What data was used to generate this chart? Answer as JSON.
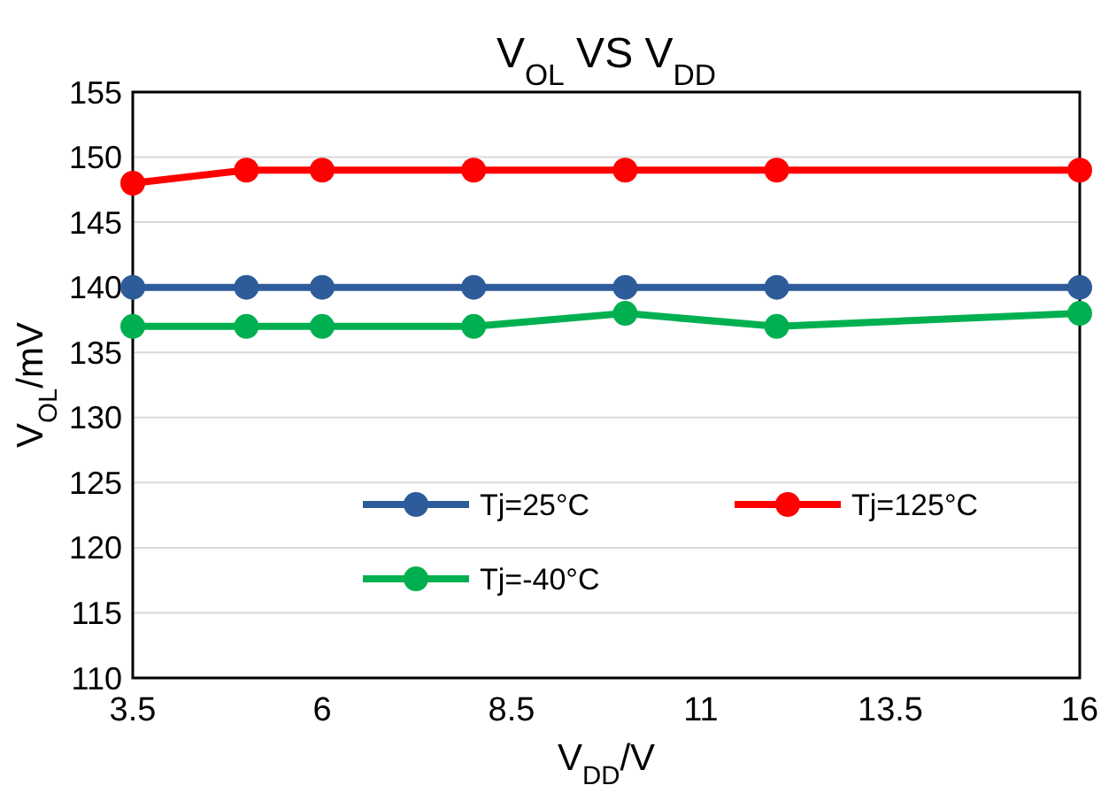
{
  "chart_data": {
    "type": "line",
    "title": "V$_{OL}$ VS V$_{DD}$",
    "xlabel": "V$_{DD}$/V",
    "ylabel": "V$_{OL}$/mV",
    "x": [
      3.5,
      5,
      6,
      8,
      10,
      12,
      16
    ],
    "series": [
      {
        "name": "Tj=25°C",
        "color": "#2e5c9a",
        "values": [
          140,
          140,
          140,
          140,
          140,
          140,
          140
        ]
      },
      {
        "name": "Tj=125°C",
        "color": "#ff0000",
        "values": [
          148,
          149,
          149,
          149,
          149,
          149,
          149
        ]
      },
      {
        "name": "Tj=-40°C",
        "color": "#00b050",
        "values": [
          137,
          137,
          137,
          137,
          138,
          137,
          138
        ]
      }
    ],
    "xlim": [
      3.5,
      16
    ],
    "xticks": [
      3.5,
      6,
      8.5,
      11,
      13.5,
      16
    ],
    "ylim": [
      110,
      155
    ],
    "yticks": [
      110,
      115,
      120,
      125,
      130,
      135,
      140,
      145,
      150,
      155
    ],
    "grid": "y",
    "legend": "bottom",
    "marker": "circle",
    "line_style": "solid"
  }
}
